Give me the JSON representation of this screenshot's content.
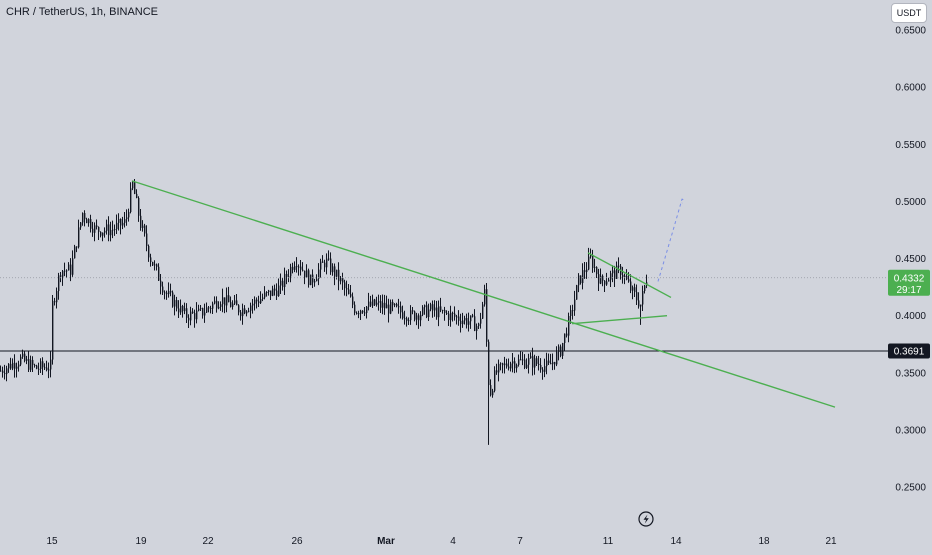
{
  "header": {
    "symbol_title": "CHR / TetherUS, 1h, BINANCE",
    "currency_button": "USDT"
  },
  "colors": {
    "background": "#d1d4dc",
    "candle": "#131722",
    "trendline": "#4caf50",
    "projection": "#7b8fe6",
    "price_badge": "#4caf50",
    "level_badge": "#131722",
    "axis_text": "#131722"
  },
  "icons": {
    "footer_badge": "lightning-bolt-icon"
  },
  "chart_data": {
    "type": "candlestick",
    "ylim": [
      0.2,
      0.66
    ],
    "yticks": [
      "0.6500",
      "0.6000",
      "0.5500",
      "0.5000",
      "0.4500",
      "0.4000",
      "0.3500",
      "0.3000",
      "0.2500"
    ],
    "xticks": [
      "15",
      "19",
      "22",
      "26",
      "Mar",
      "4",
      "7",
      "11",
      "14",
      "18",
      "21"
    ],
    "grid": false,
    "series_price_path": [
      [
        0,
        0.352
      ],
      [
        20,
        0.362
      ],
      [
        35,
        0.354
      ],
      [
        50,
        0.356
      ],
      [
        52,
        0.41
      ],
      [
        60,
        0.44
      ],
      [
        70,
        0.44
      ],
      [
        82,
        0.49
      ],
      [
        95,
        0.475
      ],
      [
        110,
        0.475
      ],
      [
        125,
        0.482
      ],
      [
        132,
        0.515
      ],
      [
        140,
        0.48
      ],
      [
        150,
        0.45
      ],
      [
        165,
        0.42
      ],
      [
        185,
        0.4
      ],
      [
        200,
        0.402
      ],
      [
        220,
        0.415
      ],
      [
        240,
        0.405
      ],
      [
        260,
        0.415
      ],
      [
        280,
        0.425
      ],
      [
        295,
        0.45
      ],
      [
        310,
        0.43
      ],
      [
        325,
        0.448
      ],
      [
        340,
        0.43
      ],
      [
        355,
        0.405
      ],
      [
        375,
        0.41
      ],
      [
        395,
        0.405
      ],
      [
        410,
        0.4
      ],
      [
        430,
        0.405
      ],
      [
        450,
        0.4
      ],
      [
        470,
        0.395
      ],
      [
        478,
        0.39
      ],
      [
        484,
        0.42
      ],
      [
        487,
        0.355
      ],
      [
        489,
        0.33
      ],
      [
        495,
        0.35
      ],
      [
        510,
        0.36
      ],
      [
        530,
        0.36
      ],
      [
        548,
        0.355
      ],
      [
        560,
        0.37
      ],
      [
        570,
        0.4
      ],
      [
        578,
        0.43
      ],
      [
        590,
        0.45
      ],
      [
        600,
        0.43
      ],
      [
        610,
        0.435
      ],
      [
        620,
        0.44
      ],
      [
        632,
        0.42
      ],
      [
        640,
        0.41
      ],
      [
        646,
        0.433
      ]
    ],
    "annotations": {
      "trendlines": [
        {
          "from": {
            "x": 132,
            "price": 0.518
          },
          "to": {
            "x": 835,
            "price": 0.32
          }
        },
        {
          "from": {
            "x": 588,
            "price": 0.455
          },
          "to": {
            "x": 671,
            "price": 0.416
          }
        },
        {
          "from": {
            "x": 572,
            "price": 0.393
          },
          "to": {
            "x": 667,
            "price": 0.4
          }
        }
      ],
      "projection": {
        "from": {
          "x": 658,
          "price": 0.43
        },
        "to": {
          "x": 682,
          "price": 0.502
        }
      },
      "horizontal_levels": [
        {
          "price": 0.3691,
          "label": "0.3691"
        },
        {
          "price": 0.4332,
          "label": "0.4332",
          "countdown": "29:17",
          "dotted": true
        }
      ]
    }
  }
}
